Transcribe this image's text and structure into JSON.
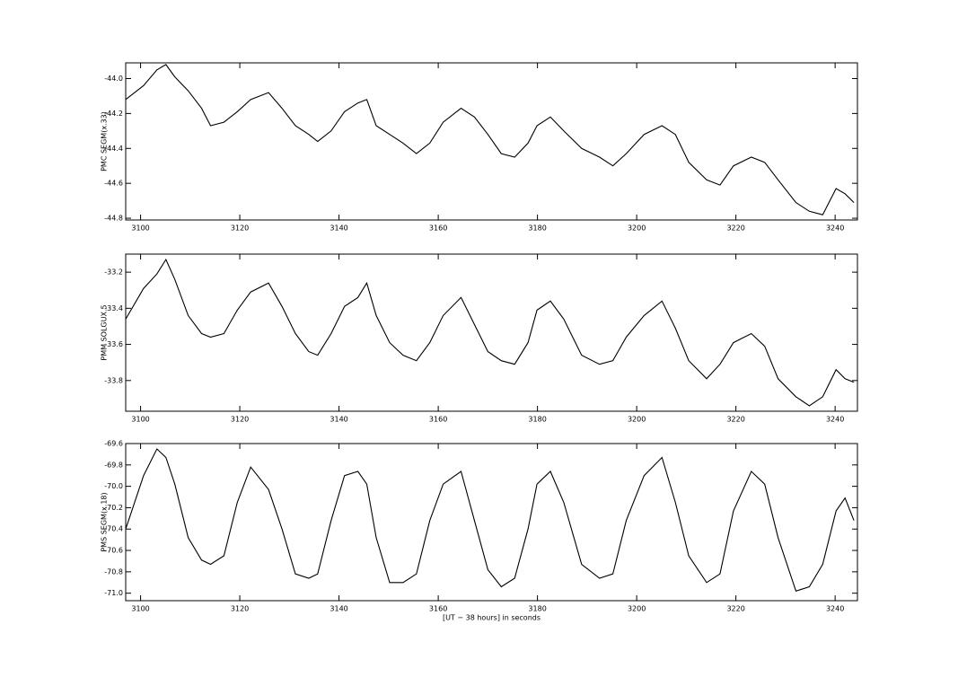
{
  "chart_data": [
    {
      "type": "line",
      "ylabel": "PMC SEGM(x.33)",
      "color": "#000000",
      "x": [
        3097.0,
        3100.6,
        3103.3,
        3105.1,
        3106.9,
        3109.6,
        3112.3,
        3114.1,
        3116.8,
        3119.5,
        3122.2,
        3125.8,
        3128.5,
        3131.2,
        3133.9,
        3135.7,
        3138.4,
        3141.1,
        3143.8,
        3145.6,
        3147.5,
        3150.2,
        3152.9,
        3155.6,
        3158.3,
        3161.0,
        3164.6,
        3167.3,
        3170.0,
        3172.7,
        3175.4,
        3178.1,
        3179.9,
        3182.6,
        3185.3,
        3188.9,
        3192.5,
        3195.2,
        3197.9,
        3201.5,
        3205.1,
        3207.8,
        3210.5,
        3214.1,
        3216.8,
        3219.5,
        3223.1,
        3225.8,
        3228.5,
        3232.1,
        3234.8,
        3237.5,
        3240.2,
        3242.0,
        3243.8
      ],
      "values": [
        -44.12,
        -44.04,
        -43.95,
        -43.92,
        -43.99,
        -44.07,
        -44.17,
        -44.27,
        -44.25,
        -44.19,
        -44.12,
        -44.08,
        -44.17,
        -44.27,
        -44.32,
        -44.36,
        -44.3,
        -44.19,
        -44.14,
        -44.12,
        -44.27,
        -44.32,
        -44.37,
        -44.43,
        -44.37,
        -44.25,
        -44.17,
        -44.22,
        -44.32,
        -44.43,
        -44.45,
        -44.37,
        -44.27,
        -44.22,
        -44.3,
        -44.4,
        -44.45,
        -44.5,
        -44.43,
        -44.32,
        -44.27,
        -44.32,
        -44.48,
        -44.58,
        -44.61,
        -44.5,
        -44.45,
        -44.48,
        -44.58,
        -44.71,
        -44.76,
        -44.78,
        -44.63,
        -44.66,
        -44.71
      ],
      "xlim": [
        3097,
        3244.5
      ],
      "xticks": [
        3100,
        3120,
        3140,
        3160,
        3180,
        3200,
        3220,
        3240
      ],
      "ylim": [
        -44.81,
        -43.91
      ],
      "yticks": [
        {
          "value": -44,
          "label": "-44.0"
        },
        -44.2,
        -44.4,
        -44.6,
        -44.8
      ]
    },
    {
      "type": "line",
      "ylabel": "PMM SOLGUX.5",
      "color": "#000000",
      "x": [
        3097.0,
        3100.6,
        3103.3,
        3105.1,
        3106.9,
        3109.6,
        3112.3,
        3114.1,
        3116.8,
        3119.5,
        3122.2,
        3125.8,
        3128.5,
        3131.2,
        3133.9,
        3135.7,
        3138.4,
        3141.1,
        3143.8,
        3145.6,
        3147.5,
        3150.2,
        3152.9,
        3155.6,
        3158.3,
        3161.0,
        3164.6,
        3167.3,
        3170.0,
        3172.7,
        3175.4,
        3178.1,
        3179.9,
        3182.6,
        3185.3,
        3188.9,
        3192.5,
        3195.2,
        3197.9,
        3201.5,
        3205.1,
        3207.8,
        3210.5,
        3214.1,
        3216.8,
        3219.5,
        3223.1,
        3225.8,
        3228.5,
        3232.1,
        3234.8,
        3237.5,
        3240.2,
        3242.0,
        3243.8
      ],
      "values": [
        -33.46,
        -33.29,
        -33.21,
        -33.13,
        -33.24,
        -33.44,
        -33.54,
        -33.56,
        -33.54,
        -33.41,
        -33.31,
        -33.26,
        -33.39,
        -33.54,
        -33.64,
        -33.66,
        -33.54,
        -33.39,
        -33.34,
        -33.26,
        -33.44,
        -33.59,
        -33.66,
        -33.69,
        -33.59,
        -33.44,
        -33.34,
        -33.49,
        -33.64,
        -33.69,
        -33.71,
        -33.59,
        -33.41,
        -33.36,
        -33.46,
        -33.66,
        -33.71,
        -33.69,
        -33.56,
        -33.44,
        -33.36,
        -33.51,
        -33.69,
        -33.79,
        -33.71,
        -33.59,
        -33.54,
        -33.61,
        -33.79,
        -33.89,
        -33.94,
        -33.89,
        -33.74,
        -33.79,
        -33.81
      ],
      "xlim": [
        3097,
        3244.5
      ],
      "xticks": [
        3100,
        3120,
        3140,
        3160,
        3180,
        3200,
        3220,
        3240
      ],
      "ylim": [
        -33.97,
        -33.1
      ],
      "yticks": [
        -33.2,
        -33.4,
        -33.6,
        -33.8
      ]
    },
    {
      "type": "line",
      "ylabel": "PMS SEGM(x.18)",
      "xlabel": "[UT − 38 hours] in seconds",
      "color": "#000000",
      "x": [
        3097.0,
        3100.6,
        3103.3,
        3105.1,
        3106.9,
        3109.6,
        3112.3,
        3114.1,
        3116.8,
        3119.5,
        3122.2,
        3125.8,
        3128.5,
        3131.2,
        3133.9,
        3135.7,
        3138.4,
        3141.1,
        3143.8,
        3145.6,
        3147.5,
        3150.2,
        3152.9,
        3155.6,
        3158.3,
        3161.0,
        3164.6,
        3167.3,
        3170.0,
        3172.7,
        3175.4,
        3178.1,
        3179.9,
        3182.6,
        3185.3,
        3188.9,
        3192.5,
        3195.2,
        3197.9,
        3201.5,
        3205.1,
        3207.8,
        3210.5,
        3214.1,
        3216.8,
        3219.5,
        3223.1,
        3225.8,
        3228.5,
        3232.1,
        3234.8,
        3237.5,
        3240.2,
        3242.0,
        3243.8
      ],
      "values": [
        -70.4,
        -69.9,
        -69.65,
        -69.73,
        -69.98,
        -70.48,
        -70.69,
        -70.73,
        -70.65,
        -70.15,
        -69.82,
        -70.03,
        -70.4,
        -70.82,
        -70.86,
        -70.82,
        -70.32,
        -69.9,
        -69.86,
        -69.98,
        -70.48,
        -70.9,
        -70.9,
        -70.82,
        -70.32,
        -69.98,
        -69.86,
        -70.32,
        -70.78,
        -70.94,
        -70.86,
        -70.4,
        -69.98,
        -69.86,
        -70.15,
        -70.73,
        -70.86,
        -70.82,
        -70.32,
        -69.9,
        -69.73,
        -70.15,
        -70.65,
        -70.9,
        -70.82,
        -70.23,
        -69.86,
        -69.98,
        -70.48,
        -70.98,
        -70.94,
        -70.73,
        -70.23,
        -70.11,
        -70.32
      ],
      "xlim": [
        3097,
        3244.5
      ],
      "xticks": [
        3100,
        3120,
        3140,
        3160,
        3180,
        3200,
        3220,
        3240
      ],
      "ylim": [
        -71.07,
        -69.6
      ],
      "yticks": [
        -69.6,
        -69.8,
        {
          "value": -70,
          "label": "-70.0"
        },
        -70.2,
        -70.4,
        -70.6,
        -70.8,
        {
          "value": -71,
          "label": "-71.0"
        }
      ]
    }
  ]
}
